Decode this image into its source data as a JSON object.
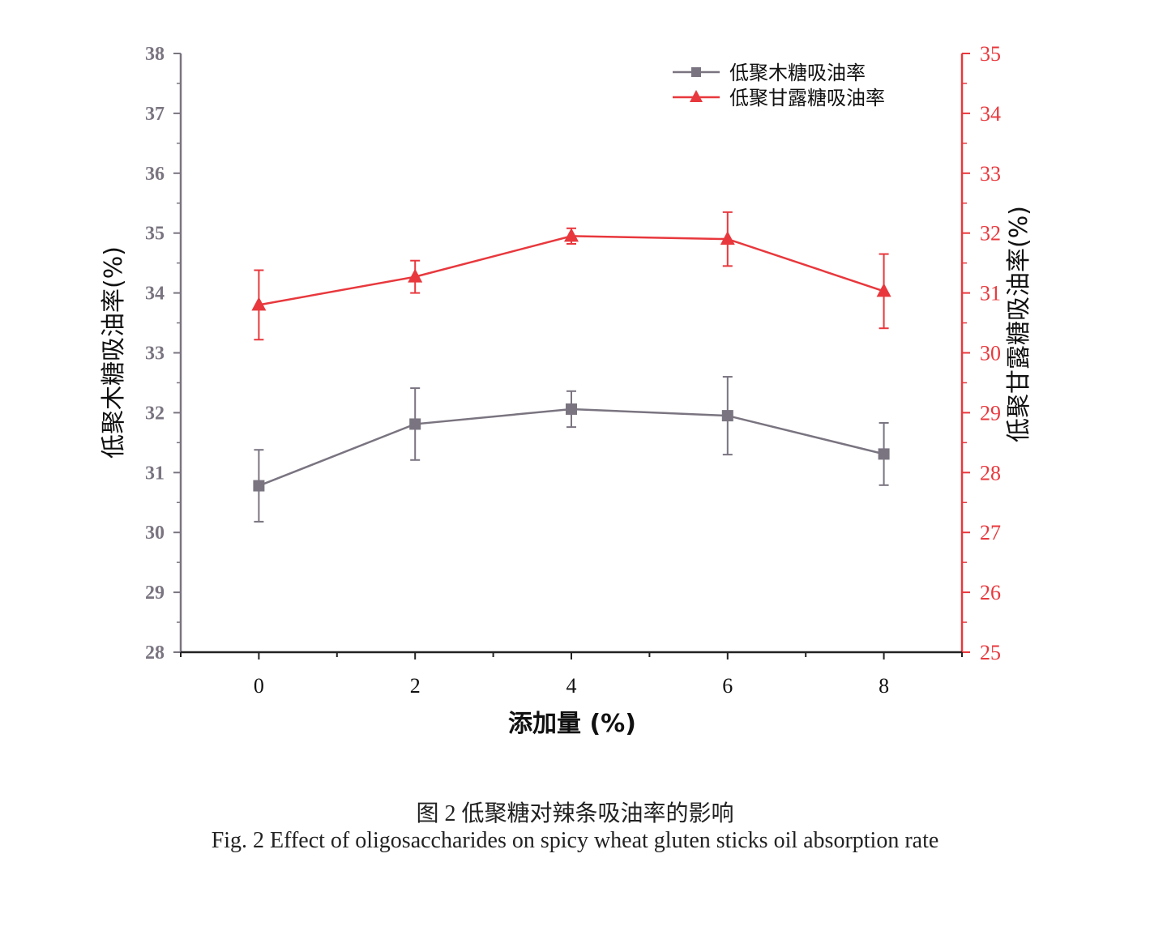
{
  "chart_data": {
    "type": "line",
    "x": [
      0,
      2,
      4,
      6,
      8
    ],
    "xticks": [
      "0",
      "2",
      "4",
      "6",
      "8"
    ],
    "xlim": [
      -1,
      9
    ],
    "xlabel": "添加量 (%)",
    "y_left": {
      "label": "低聚木糖吸油率(%)",
      "lim": [
        28,
        38
      ],
      "ticks": [
        "28",
        "29",
        "30",
        "31",
        "32",
        "33",
        "34",
        "35",
        "36",
        "37",
        "38"
      ],
      "color": "#7a7480"
    },
    "y_right": {
      "label": "低聚甘露糖吸油率(%)",
      "lim": [
        25,
        35
      ],
      "ticks": [
        "25",
        "26",
        "27",
        "28",
        "29",
        "30",
        "31",
        "32",
        "33",
        "34",
        "35"
      ],
      "color": "#e8383d"
    },
    "series": [
      {
        "name": "低聚木糖吸油率",
        "axis": "left",
        "marker": "square",
        "color": "#7a7480",
        "values": [
          30.78,
          31.81,
          32.06,
          31.95,
          31.31
        ],
        "errors": [
          0.6,
          0.6,
          0.3,
          0.65,
          0.52
        ]
      },
      {
        "name": "低聚甘露糖吸油率",
        "axis": "right",
        "marker": "triangle",
        "color": "#e8383d",
        "values": [
          30.8,
          31.27,
          31.95,
          31.9,
          31.03
        ],
        "errors": [
          0.58,
          0.27,
          0.13,
          0.45,
          0.62
        ]
      }
    ],
    "legend_position": "top-right",
    "grid": false
  },
  "captions": {
    "chinese": "图 2  低聚糖对辣条吸油率的影响",
    "english": "Fig. 2 Effect of oligosaccharides on spicy wheat gluten sticks oil absorption rate"
  }
}
